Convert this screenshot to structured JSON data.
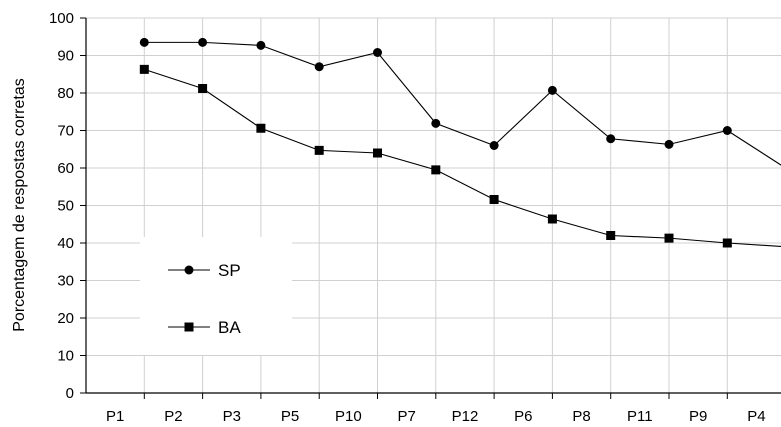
{
  "chart_data": {
    "type": "line",
    "title": "",
    "xlabel": "",
    "ylabel": "Porcentagem de respostas corretas",
    "ylim": [
      0,
      100
    ],
    "yticks": [
      0,
      10,
      20,
      30,
      40,
      50,
      60,
      70,
      80,
      90,
      100
    ],
    "categories": [
      "P1",
      "P2",
      "P3",
      "P5",
      "P10",
      "P7",
      "P12",
      "P6",
      "P8",
      "P11",
      "P9",
      "P4"
    ],
    "grid": true,
    "legend_position": "bottom-left",
    "series": [
      {
        "name": "SP",
        "marker": "circle",
        "color": "#000000",
        "values": [
          93.5,
          93.5,
          92.7,
          87.0,
          90.8,
          71.9,
          66.0,
          80.7,
          67.8,
          66.3,
          70.0,
          60.0
        ]
      },
      {
        "name": "BA",
        "marker": "square",
        "color": "#000000",
        "values": [
          86.3,
          81.2,
          70.6,
          64.7,
          64.0,
          59.5,
          51.6,
          46.4,
          42.0,
          41.3,
          40.0,
          39.0
        ]
      }
    ]
  }
}
